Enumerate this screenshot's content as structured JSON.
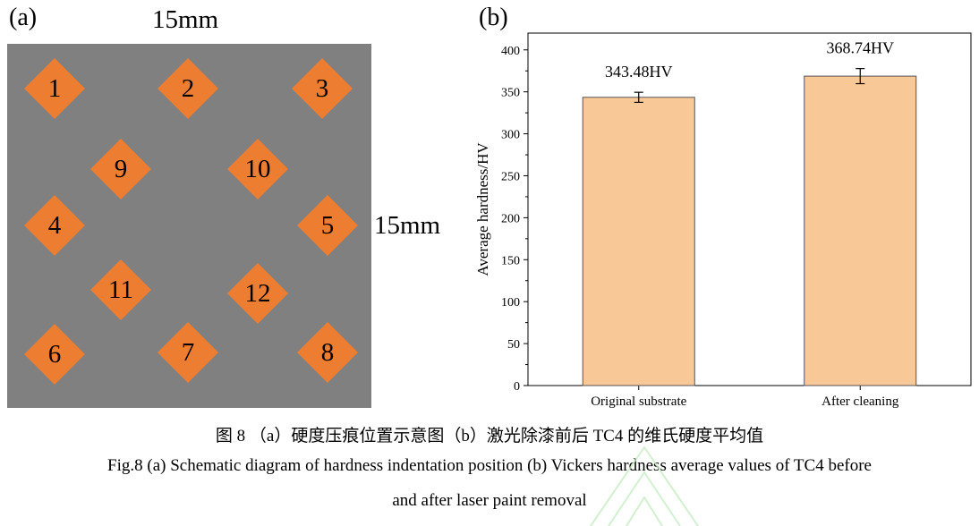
{
  "panel_a": {
    "label": "(a)",
    "top_dimension": "15mm",
    "right_dimension": "15mm",
    "plate_color": "#808080",
    "diamond_color": "#ed7d31",
    "indentations": [
      "1",
      "2",
      "3",
      "9",
      "10",
      "4",
      "5",
      "11",
      "12",
      "6",
      "7",
      "8"
    ]
  },
  "panel_b": {
    "label": "(b)"
  },
  "chart_data": {
    "type": "bar",
    "categories": [
      "Original substrate",
      "After cleaning"
    ],
    "values": [
      343.48,
      368.74
    ],
    "errors": [
      6,
      9
    ],
    "data_labels": [
      "343.48HV",
      "368.74HV"
    ],
    "xlabel": "",
    "ylabel": "Average hardness/HV",
    "ylim": [
      0,
      420
    ],
    "yticks": [
      0,
      50,
      100,
      150,
      200,
      250,
      300,
      350,
      400
    ],
    "bar_color": "#f8c897",
    "bar_edge": "#555555",
    "grid": false
  },
  "captions": {
    "cn": "图 8 （a）硬度压痕位置示意图（b）激光除漆前后 TC4 的维氏硬度平均值",
    "en_line1": "Fig.8 (a) Schematic diagram of hardness indentation position (b) Vickers hardness average values of TC4 before",
    "en_line2": "and after laser paint removal"
  }
}
